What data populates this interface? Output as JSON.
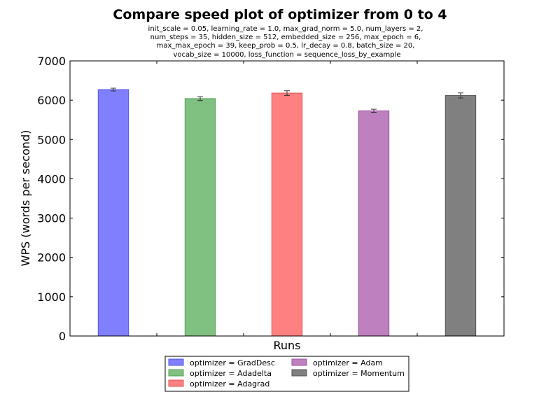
{
  "chart_data": {
    "type": "bar",
    "title": "Compare speed plot of optimizer from 0 to 4",
    "subtitle_lines": [
      "init_scale = 0.05, learning_rate = 1.0, max_grad_norm = 5.0, num_layers = 2,",
      "num_steps = 35, hidden_size = 512, embedded_size = 256, max_epoch = 6,",
      "max_max_epoch = 39, keep_prob = 0.5, lr_decay = 0.8, batch_size = 20,",
      "vocab_size = 10000, loss_function = sequence_loss_by_example"
    ],
    "xlabel": "Runs",
    "ylabel": "WPS (words per second)",
    "ylim": [
      0,
      7000
    ],
    "yticks": [
      0,
      1000,
      2000,
      3000,
      4000,
      5000,
      6000,
      7000
    ],
    "grid": false,
    "legend_position": "bottom-center",
    "series": [
      {
        "name": "optimizer = GradDesc",
        "value": 6270,
        "error": 35,
        "color": "#8080ff",
        "edge": "#5555dd"
      },
      {
        "name": "optimizer = Adadelta",
        "value": 6040,
        "error": 50,
        "color": "#80c080",
        "edge": "#55a055"
      },
      {
        "name": "optimizer = Adagrad",
        "value": 6180,
        "error": 60,
        "color": "#ff8080",
        "edge": "#dd5555"
      },
      {
        "name": "optimizer = Adam",
        "value": 5730,
        "error": 40,
        "color": "#bf80bf",
        "edge": "#9a559a"
      },
      {
        "name": "optimizer = Momentum",
        "value": 6120,
        "error": 65,
        "color": "#808080",
        "edge": "#555555"
      }
    ]
  }
}
